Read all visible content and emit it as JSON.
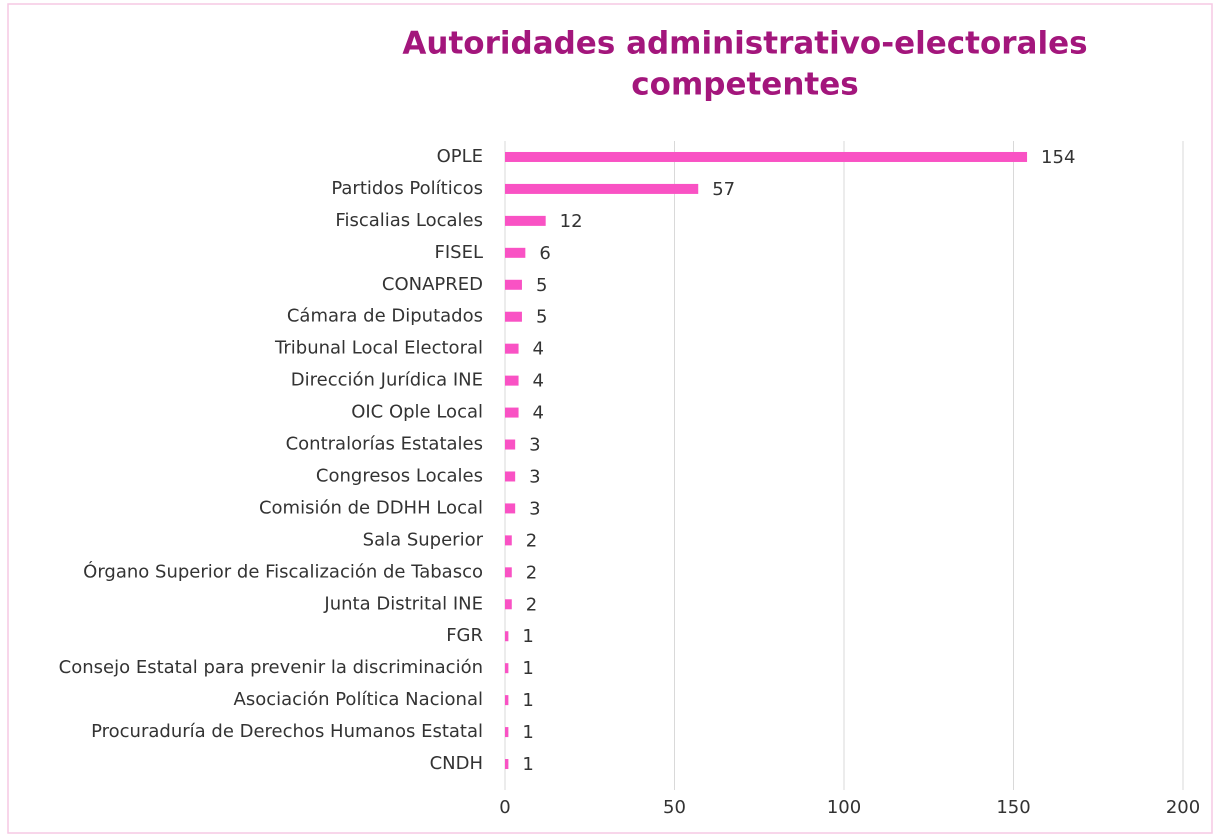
{
  "chart_data": {
    "type": "bar",
    "orientation": "horizontal",
    "title": [
      "Autoridades administrativo-electorales",
      "competentes"
    ],
    "categories": [
      "OPLE",
      "Partidos Políticos",
      "Fiscalias Locales",
      "FISEL",
      "CONAPRED",
      "Cámara de Diputados",
      "Tribunal Local Electoral",
      "Dirección Jurídica INE",
      "OIC Ople Local",
      "Contralorías Estatales",
      "Congresos Locales",
      "Comisión de DDHH Local",
      "Sala Superior",
      "Órgano Superior de Fiscalización de Tabasco",
      "Junta Distrital INE",
      "FGR",
      "Consejo Estatal para prevenir la discriminación",
      "Asociación Política Nacional",
      "Procuraduría de Derechos Humanos Estatal",
      "CNDH"
    ],
    "values": [
      154,
      57,
      12,
      6,
      5,
      5,
      4,
      4,
      4,
      3,
      3,
      3,
      2,
      2,
      2,
      1,
      1,
      1,
      1,
      1
    ],
    "color": "#f952c4",
    "xlim": [
      0,
      200
    ],
    "xticks": [
      0,
      50,
      100,
      150,
      200
    ],
    "grid": true
  }
}
